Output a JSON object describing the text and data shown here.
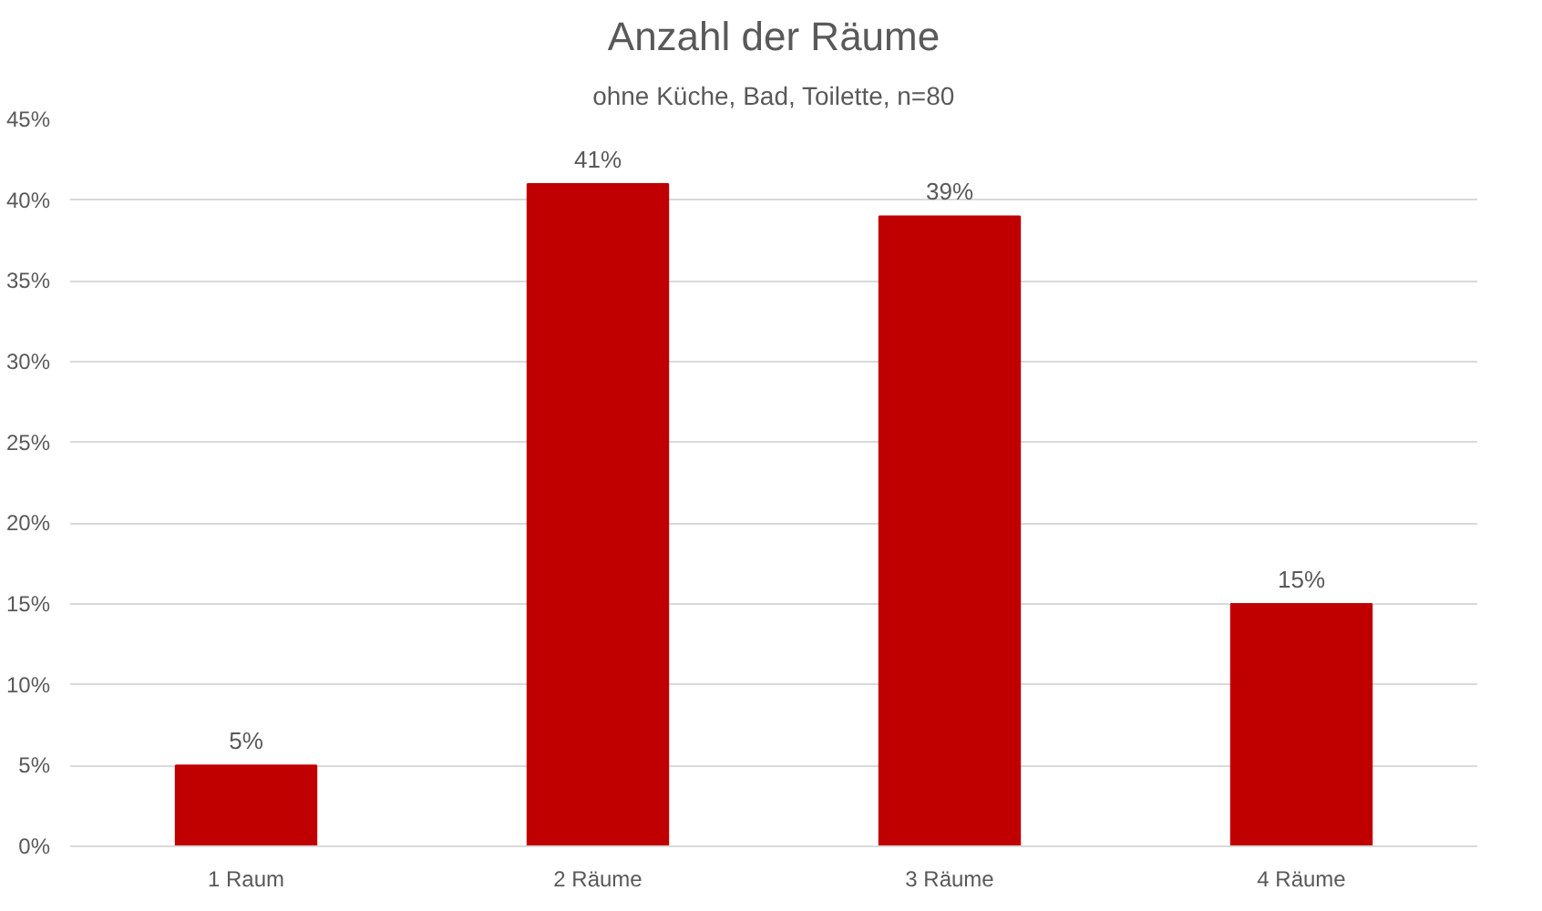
{
  "chart_data": {
    "type": "bar",
    "title": "Anzahl der Räume",
    "subtitle": "ohne Küche, Bad, Toilette, n=80",
    "categories": [
      "1 Raum",
      "2 Räume",
      "3 Räume",
      "4 Räume"
    ],
    "values": [
      5,
      41,
      39,
      15
    ],
    "color": "#c00000",
    "ylim": [
      0,
      45
    ],
    "yticks": [
      {
        "value": 0,
        "label": "0%"
      },
      {
        "value": 5,
        "label": "5%"
      },
      {
        "value": 10,
        "label": "10%"
      },
      {
        "value": 15,
        "label": "15%"
      },
      {
        "value": 20,
        "label": "20%"
      },
      {
        "value": 25,
        "label": "25%"
      },
      {
        "value": 30,
        "label": "30%"
      },
      {
        "value": 35,
        "label": "35%"
      },
      {
        "value": 40,
        "label": "40%"
      },
      {
        "value": 45,
        "label": "45%"
      }
    ],
    "value_labels": [
      "5%",
      "41%",
      "39%",
      "15%"
    ],
    "grid": "y"
  }
}
